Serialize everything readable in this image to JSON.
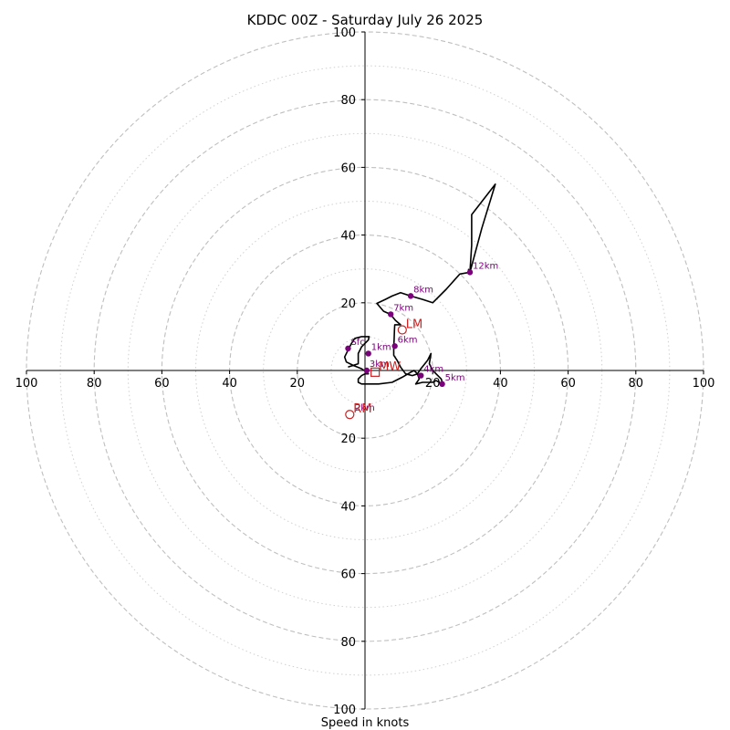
{
  "chart_data": {
    "type": "hodograph",
    "title": "KDDC 00Z - Saturday July 26 2025",
    "xlabel": "Speed in knots",
    "range": [
      -100,
      100
    ],
    "ring_major": [
      20,
      40,
      60,
      80,
      100
    ],
    "ring_minor": [
      10,
      30,
      50,
      70,
      90
    ],
    "x_ticks": [
      "100",
      "80",
      "60",
      "40",
      "20",
      "20",
      "40",
      "60",
      "80",
      "100"
    ],
    "x_tick_values": [
      -100,
      -80,
      -60,
      -40,
      -20,
      20,
      40,
      60,
      80,
      100
    ],
    "y_ticks": [
      "100",
      "80",
      "60",
      "40",
      "20",
      "20",
      "40",
      "60",
      "80",
      "100"
    ],
    "y_tick_values": [
      100,
      80,
      60,
      40,
      20,
      -20,
      -40,
      -60,
      -80,
      -100
    ],
    "trace": [
      [
        -5,
        1
      ],
      [
        -2,
        2
      ],
      [
        -2,
        3
      ],
      [
        -2,
        5
      ],
      [
        -1,
        7
      ],
      [
        1,
        9
      ],
      [
        1.2,
        10
      ],
      [
        -1,
        10
      ],
      [
        -3,
        9.5
      ],
      [
        -4,
        8
      ],
      [
        -5,
        6
      ],
      [
        -6,
        4
      ],
      [
        -5.5,
        2.5
      ],
      [
        -3.5,
        1.5
      ],
      [
        -1,
        0.5
      ],
      [
        0.5,
        -0.5
      ],
      [
        1,
        -1
      ],
      [
        0,
        -1
      ],
      [
        -1,
        -1.5
      ],
      [
        -2,
        -2.5
      ],
      [
        -2,
        -3.5
      ],
      [
        -1,
        -4
      ],
      [
        1,
        -4
      ],
      [
        4,
        -4
      ],
      [
        8,
        -3.5
      ],
      [
        11,
        -2
      ],
      [
        13.5,
        -0.5
      ],
      [
        14.5,
        0
      ],
      [
        15.5,
        -1
      ],
      [
        16,
        -2.5
      ],
      [
        15,
        -4
      ],
      [
        17,
        -3.5
      ],
      [
        19,
        -3.5
      ],
      [
        20,
        -3.5
      ],
      [
        21,
        -3
      ],
      [
        22,
        -3.5
      ],
      [
        23,
        -4
      ],
      [
        22.5,
        -2.5
      ],
      [
        21.5,
        -1.5
      ],
      [
        20,
        0
      ],
      [
        19,
        2
      ],
      [
        19.5,
        5
      ],
      [
        18.5,
        3
      ],
      [
        16.5,
        0.5
      ],
      [
        15.5,
        -1
      ],
      [
        14,
        -1.5
      ],
      [
        12,
        -1
      ],
      [
        10.5,
        1
      ],
      [
        9.5,
        3
      ],
      [
        8.5,
        4.5
      ],
      [
        8.5,
        7.2
      ],
      [
        8.6,
        9
      ],
      [
        8.7,
        12
      ],
      [
        8.8,
        13.5
      ],
      [
        10.5,
        13.5
      ],
      [
        9,
        14.8
      ],
      [
        7.5,
        16.6
      ],
      [
        5.5,
        17.5
      ],
      [
        3.5,
        19.8
      ],
      [
        6,
        21
      ],
      [
        8,
        22
      ],
      [
        10.5,
        23
      ],
      [
        13.5,
        22
      ],
      [
        17,
        21
      ],
      [
        20,
        20
      ],
      [
        24,
        24
      ],
      [
        28,
        28.5
      ],
      [
        31,
        29
      ],
      [
        31.5,
        37
      ],
      [
        31.5,
        46
      ],
      [
        38.5,
        55
      ],
      [
        34.5,
        42
      ],
      [
        31,
        29
      ],
      [
        30.5,
        30
      ]
    ],
    "height_points": [
      {
        "label": "Sfc",
        "x": -5,
        "y": 6.5
      },
      {
        "label": "1km",
        "x": 1,
        "y": 5
      },
      {
        "label": "3km",
        "x": 0.5,
        "y": 0
      },
      {
        "label": "4km",
        "x": 16.5,
        "y": -1.5
      },
      {
        "label": "5km",
        "x": 22.8,
        "y": -4
      },
      {
        "label": "6km",
        "x": 8.8,
        "y": 7.2
      },
      {
        "label": "7km",
        "x": 7.6,
        "y": 16.6
      },
      {
        "label": "8km",
        "x": 13.5,
        "y": 22
      },
      {
        "label": "12km",
        "x": 31,
        "y": 29
      }
    ],
    "motion_markers": [
      {
        "label": "LM",
        "shape": "circle",
        "x": 11,
        "y": 12
      },
      {
        "label": "MW",
        "shape": "square",
        "x": 3,
        "y": -0.5
      },
      {
        "label": "RM",
        "shape": "circle",
        "x": -4.5,
        "y": -13
      }
    ],
    "extra_labels": [
      {
        "label": "2km",
        "x": -3,
        "y": -11
      }
    ],
    "colors": {
      "trace": "#000000",
      "height_point": "#7b007b",
      "motion_marker": "#cc2222",
      "ring": "#bfbfbf"
    }
  }
}
